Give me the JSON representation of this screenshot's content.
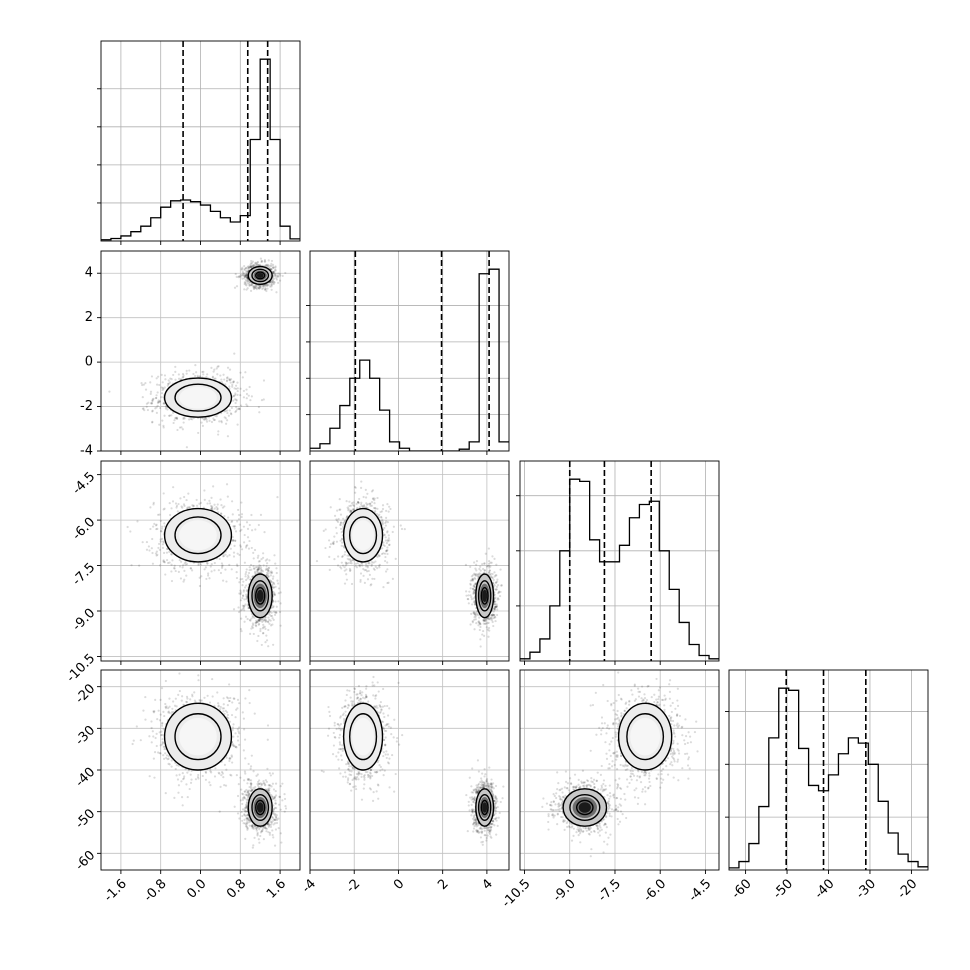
{
  "chart_data": {
    "type": "corner",
    "parameters": [
      {
        "key": "p0",
        "range": [
          -2.0,
          2.0
        ],
        "ticks": [
          "-1.6",
          "-0.8",
          "0.0",
          "0.8",
          "1.6"
        ],
        "tick_values": [
          -1.6,
          -0.8,
          0.0,
          0.8,
          1.6
        ],
        "quantiles": [
          -0.35,
          0.95,
          1.35
        ],
        "histogram": {
          "edges_start": -2.0,
          "bin_width": 0.2,
          "counts": [
            0.3,
            0.6,
            1.2,
            2.2,
            3.5,
            5.5,
            8.0,
            9.5,
            9.7,
            9.3,
            8.5,
            7.0,
            5.5,
            4.5,
            6.0,
            24.0,
            43.0,
            24.0,
            3.5,
            0.5
          ]
        },
        "hist_grid": [
          9,
          18,
          27,
          36
        ]
      },
      {
        "key": "p1",
        "range": [
          -4.0,
          5.0
        ],
        "ticks": [
          "-4",
          "-2",
          "0",
          "2",
          "4"
        ],
        "tick_values": [
          -4,
          -2,
          0,
          2,
          4
        ],
        "quantiles": [
          -1.95,
          1.95,
          4.1
        ],
        "histogram": {
          "edges_start": -4.0,
          "bin_width": 0.45,
          "counts": [
            0.3,
            0.8,
            2.5,
            5.0,
            8.0,
            10.0,
            8.0,
            4.5,
            1.0,
            0.3,
            0.0,
            0.0,
            0.0,
            0.0,
            0.0,
            0.2,
            1.0,
            19.5,
            20.0,
            1.0
          ]
        },
        "hist_grid": [
          4,
          8,
          12,
          16
        ]
      },
      {
        "key": "p2",
        "range": [
          -10.65,
          -4.05
        ],
        "ticks": [
          "-10.5",
          "-9.0",
          "-7.5",
          "-6.0",
          "-4.5"
        ],
        "tick_values": [
          -10.5,
          -9.0,
          -7.5,
          -6.0,
          -4.5
        ],
        "quantiles": [
          -9.0,
          -7.85,
          -6.3
        ],
        "histogram": {
          "edges_start": -10.65,
          "bin_width": 0.33,
          "counts": [
            0.2,
            0.8,
            2.0,
            5.0,
            10.0,
            16.5,
            16.3,
            11.0,
            9.0,
            9.0,
            10.5,
            13.0,
            14.2,
            14.5,
            10.0,
            6.5,
            3.5,
            1.5,
            0.5,
            0.2
          ]
        },
        "hist_grid": [
          5,
          10,
          15
        ]
      },
      {
        "key": "p3",
        "range": [
          -64.0,
          -16.0
        ],
        "ticks": [
          "-60",
          "-50",
          "-40",
          "-30",
          "-20"
        ],
        "tick_values": [
          -60,
          -50,
          -40,
          -30,
          -20
        ],
        "quantiles": [
          -50.2,
          -41.2,
          -31.0
        ],
        "histogram": {
          "edges_start": -64.0,
          "bin_width": 2.4,
          "counts": [
            0.2,
            0.8,
            2.5,
            6.0,
            12.5,
            17.2,
            17.0,
            11.5,
            8.0,
            7.5,
            9.0,
            11.0,
            12.5,
            12.0,
            10.0,
            6.5,
            3.5,
            1.5,
            0.8,
            0.3
          ]
        },
        "hist_grid": [
          5,
          10,
          15
        ]
      }
    ],
    "modes": [
      {
        "weight": 0.5,
        "mean": [
          -0.05,
          -1.6,
          -6.5,
          -32.0
        ],
        "sd": [
          0.42,
          0.55,
          0.55,
          5.0
        ]
      },
      {
        "weight": 0.5,
        "mean": [
          1.2,
          3.9,
          -8.5,
          -49.0
        ],
        "sd": [
          0.15,
          0.25,
          0.45,
          2.8
        ]
      }
    ],
    "contour_levels": [
      "0.5-sigma",
      "1-sigma",
      "1.5-sigma"
    ],
    "scatter_points": 1800,
    "grid": true,
    "title": "",
    "xlabel": "",
    "ylabel": ""
  }
}
